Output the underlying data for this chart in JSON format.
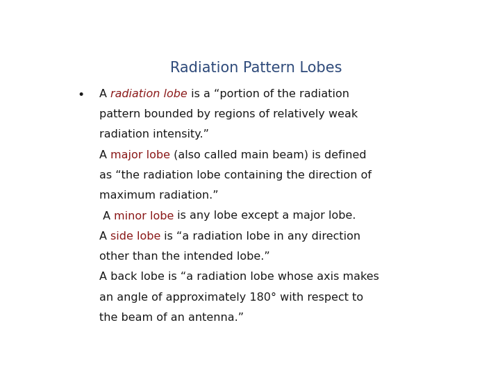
{
  "title": "Radiation Pattern Lobes",
  "title_color": "#2E4A7A",
  "title_fontsize": 15,
  "background_color": "#ffffff",
  "body_fontsize": 11.5,
  "body_color": "#1a1a1a",
  "red_color": "#8B1A1A",
  "segments": [
    {
      "parts": [
        {
          "text": "A ",
          "style": "normal",
          "color": "#1a1a1a"
        },
        {
          "text": "radiation lobe",
          "style": "italic",
          "color": "#8B1A1A"
        },
        {
          "text": " is a “portion of the radiation",
          "style": "normal",
          "color": "#1a1a1a"
        }
      ]
    },
    {
      "parts": [
        {
          "text": "pattern bounded by regions of relatively weak",
          "style": "normal",
          "color": "#1a1a1a"
        }
      ]
    },
    {
      "parts": [
        {
          "text": "radiation intensity.”",
          "style": "normal",
          "color": "#1a1a1a"
        }
      ]
    },
    {
      "parts": [
        {
          "text": "A ",
          "style": "normal",
          "color": "#1a1a1a"
        },
        {
          "text": "major lobe",
          "style": "normal",
          "color": "#8B1A1A"
        },
        {
          "text": " (also called main beam) is defined",
          "style": "normal",
          "color": "#1a1a1a"
        }
      ]
    },
    {
      "parts": [
        {
          "text": "as “the radiation lobe containing the direction of",
          "style": "normal",
          "color": "#1a1a1a"
        }
      ]
    },
    {
      "parts": [
        {
          "text": "maximum radiation.”",
          "style": "normal",
          "color": "#1a1a1a"
        }
      ]
    },
    {
      "parts": [
        {
          "text": " A ",
          "style": "normal",
          "color": "#1a1a1a"
        },
        {
          "text": "minor lobe",
          "style": "normal",
          "color": "#8B1A1A"
        },
        {
          "text": " is any lobe except a major lobe.",
          "style": "normal",
          "color": "#1a1a1a"
        }
      ]
    },
    {
      "parts": [
        {
          "text": "A ",
          "style": "normal",
          "color": "#1a1a1a"
        },
        {
          "text": "side lobe",
          "style": "normal",
          "color": "#8B1A1A"
        },
        {
          "text": " is “a radiation lobe in any direction",
          "style": "normal",
          "color": "#1a1a1a"
        }
      ]
    },
    {
      "parts": [
        {
          "text": "other than the intended lobe.”",
          "style": "normal",
          "color": "#1a1a1a"
        }
      ]
    },
    {
      "parts": [
        {
          "text": "A back lobe is “a radiation lobe whose axis makes",
          "style": "normal",
          "color": "#1a1a1a"
        }
      ]
    },
    {
      "parts": [
        {
          "text": "an angle of approximately 180° with respect to",
          "style": "normal",
          "color": "#1a1a1a"
        }
      ]
    },
    {
      "parts": [
        {
          "text": "the beam of an antenna.”",
          "style": "normal",
          "color": "#1a1a1a"
        }
      ]
    }
  ]
}
